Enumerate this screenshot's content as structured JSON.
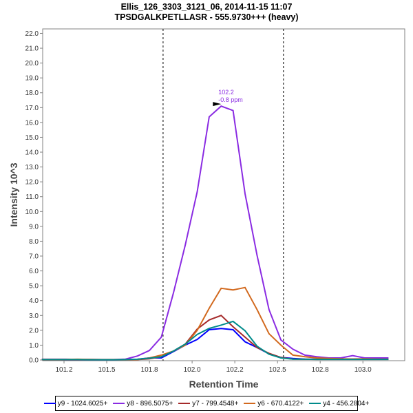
{
  "chart_data": {
    "type": "line",
    "title": "Ellis_126_3303_3121_06, 2014-11-15 11:07",
    "subtitle": "TPSDGALKPETLLASR - 555.9730+++ (heavy)",
    "xlabel": "Retention Time",
    "ylabel": "Intensity 10^3",
    "xlim": [
      101.125,
      103.245
    ],
    "ylim": [
      0,
      22.3
    ],
    "x_ticks": [
      101.25,
      101.5,
      101.75,
      102.0,
      102.25,
      102.5,
      102.75,
      103.0
    ],
    "x_tick_labels": [
      "101.2",
      "101.5",
      "101.8",
      "102.0",
      "102.2",
      "102.5",
      "102.8",
      "103.0"
    ],
    "y_ticks": [
      0,
      1,
      2,
      3,
      4,
      5,
      6,
      7,
      8,
      9,
      10,
      11,
      12,
      13,
      14,
      15,
      16,
      17,
      18,
      19,
      20,
      21,
      22
    ],
    "y_tick_labels": [
      "0.0",
      "1.0",
      "2.0",
      "3.0",
      "4.0",
      "5.0",
      "6.0",
      "7.0",
      "8.0",
      "9.0",
      "10.0",
      "11.0",
      "12.0",
      "13.0",
      "14.0",
      "15.0",
      "16.0",
      "17.0",
      "18.0",
      "19.0",
      "20.0",
      "21.0",
      "22.0"
    ],
    "grid": false,
    "legend_placement": "bottom",
    "x": [
      101.12,
      101.19,
      101.26,
      101.33,
      101.4,
      101.47,
      101.54,
      101.61,
      101.68,
      101.75,
      101.82,
      101.89,
      101.96,
      102.03,
      102.1,
      102.17,
      102.24,
      102.31,
      102.38,
      102.45,
      102.52,
      102.59,
      102.66,
      102.73,
      102.8,
      102.87,
      102.94,
      103.01,
      103.08,
      103.15
    ],
    "series": [
      {
        "name": "y9 - 1024.6025+",
        "color": "#0000ff",
        "values": [
          0.03,
          0.03,
          0.02,
          0.02,
          0.02,
          0.02,
          0.02,
          0.03,
          0.05,
          0.14,
          0.14,
          0.56,
          1.0,
          1.38,
          2.04,
          2.12,
          2.04,
          1.23,
          0.84,
          0.42,
          0.17,
          0.1,
          0.06,
          0.05,
          0.05,
          0.05,
          0.05,
          0.05,
          0.05,
          0.05
        ]
      },
      {
        "name": "y8 - 896.5075+",
        "color": "#8a2be2",
        "values": [
          0.05,
          0.05,
          0.05,
          0.04,
          0.04,
          0.03,
          0.03,
          0.06,
          0.27,
          0.64,
          1.54,
          4.49,
          7.75,
          11.33,
          16.38,
          17.1,
          16.8,
          11.2,
          7.06,
          3.4,
          1.35,
          0.73,
          0.33,
          0.22,
          0.14,
          0.14,
          0.29,
          0.14,
          0.14,
          0.14
        ]
      },
      {
        "name": "y7 - 799.4548+",
        "color": "#a52a2a",
        "values": [
          0.02,
          0.02,
          0.02,
          0.02,
          0.02,
          0.02,
          0.02,
          0.02,
          0.03,
          0.08,
          0.22,
          0.6,
          1.07,
          2.08,
          2.7,
          3.0,
          2.24,
          1.54,
          0.84,
          0.45,
          0.17,
          0.06,
          0.05,
          0.05,
          0.05,
          0.05,
          0.05,
          0.05,
          0.05,
          0.05
        ]
      },
      {
        "name": "y6 - 670.4122+",
        "color": "#d2691e",
        "values": [
          0.04,
          0.04,
          0.04,
          0.05,
          0.04,
          0.03,
          0.03,
          0.03,
          0.03,
          0.14,
          0.33,
          0.6,
          1.0,
          2.0,
          3.48,
          4.83,
          4.72,
          4.88,
          3.4,
          1.77,
          1.0,
          0.33,
          0.22,
          0.14,
          0.1,
          0.08,
          0.07,
          0.08,
          0.06,
          0.05
        ]
      },
      {
        "name": "y4 - 456.2804+",
        "color": "#008b8b",
        "values": [
          0.03,
          0.03,
          0.03,
          0.03,
          0.02,
          0.02,
          0.02,
          0.03,
          0.05,
          0.12,
          0.22,
          0.6,
          1.07,
          1.72,
          2.13,
          2.35,
          2.6,
          1.97,
          0.93,
          0.39,
          0.14,
          0.06,
          0.05,
          0.04,
          0.04,
          0.04,
          0.04,
          0.04,
          0.04,
          0.04
        ]
      }
    ],
    "boundaries": [
      101.83,
      102.535
    ],
    "annotation": {
      "rt_label": "102.2",
      "ppm_label": "-0.8 ppm",
      "x": 102.17,
      "y": 17.1,
      "color": "#8a2be2"
    }
  }
}
